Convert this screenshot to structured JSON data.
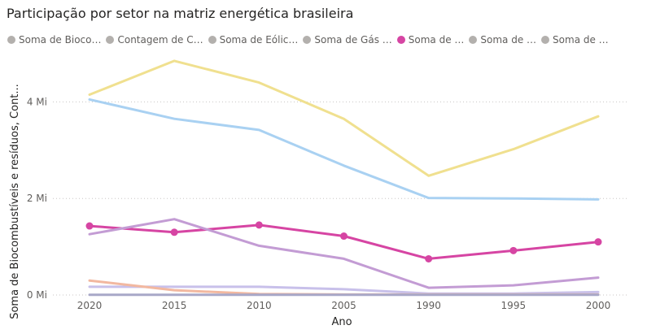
{
  "visual": {
    "title": "Participação por setor na matriz energética brasileira"
  },
  "legend": [
    {
      "label": "Soma de Bioco…",
      "color": "#b3b0ad",
      "active": false
    },
    {
      "label": "Contagem de C…",
      "color": "#b3b0ad",
      "active": false
    },
    {
      "label": "Soma de Eólic…",
      "color": "#b3b0ad",
      "active": false
    },
    {
      "label": "Soma de Gás …",
      "color": "#b3b0ad",
      "active": false
    },
    {
      "label": "Soma de …",
      "color": "#d645a3",
      "active": true
    },
    {
      "label": "Soma de …",
      "color": "#b3b0ad",
      "active": false
    },
    {
      "label": "Soma de …",
      "color": "#b3b0ad",
      "active": false
    }
  ],
  "chart_data": {
    "type": "line",
    "title": "Participação por setor na matriz energética brasileira",
    "xlabel": "Ano",
    "ylabel": "Soma de Biocombustíveis e resíduos, Cont...",
    "categories": [
      "2020",
      "2015",
      "2010",
      "2005",
      "1990",
      "1995",
      "2000"
    ],
    "y_ticks": [
      {
        "value": 0,
        "label": "0 Mi"
      },
      {
        "value": 2000000,
        "label": "2 Mi"
      },
      {
        "value": 4000000,
        "label": "4 Mi"
      }
    ],
    "ylim": [
      0,
      5000000
    ],
    "grid": "horizontal-dotted",
    "legend_position": "top-left",
    "series": [
      {
        "values": [
          4150000,
          4850000,
          4400000,
          3650000,
          2470000,
          3020000,
          3700000
        ],
        "color": "#f0e08f",
        "markers": false
      },
      {
        "values": [
          4050000,
          3650000,
          3420000,
          2680000,
          2010000,
          2000000,
          1980000
        ],
        "color": "#a9d1f2",
        "markers": false
      },
      {
        "values": [
          1430000,
          1300000,
          1450000,
          1220000,
          750000,
          920000,
          1100000
        ],
        "color": "#d645a3",
        "markers": true
      },
      {
        "values": [
          1260000,
          1570000,
          1020000,
          750000,
          150000,
          200000,
          360000
        ],
        "color": "#c39cd4",
        "markers": false
      },
      {
        "values": [
          170000,
          170000,
          170000,
          120000,
          30000,
          30000,
          60000
        ],
        "color": "#c8c0ea",
        "markers": false
      },
      {
        "values": [
          300000,
          100000,
          20000,
          10000,
          10000,
          10000,
          10000
        ],
        "color": "#f2b8a0",
        "markers": false
      },
      {
        "values": [
          5000,
          5000,
          5000,
          5000,
          5000,
          5000,
          5000
        ],
        "color": "#a8a8c8",
        "markers": false
      }
    ]
  }
}
